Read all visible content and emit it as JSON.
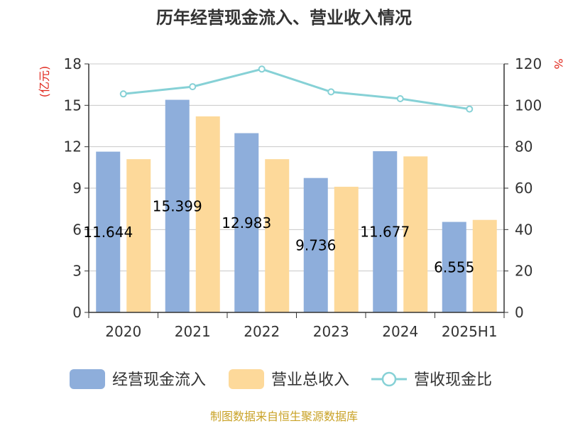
{
  "chart_data": {
    "type": "bar",
    "title": "历年经营现金流入、营业收入情况",
    "categories": [
      "2020",
      "2021",
      "2022",
      "2023",
      "2024",
      "2025H1"
    ],
    "y_left": {
      "unit": "(亿元)",
      "min": 0,
      "max": 18,
      "ticks": [
        0,
        3,
        6,
        9,
        12,
        15,
        18
      ]
    },
    "y_right": {
      "unit": "%",
      "min": 0,
      "max": 120,
      "ticks": [
        0,
        20,
        40,
        60,
        80,
        100,
        120
      ]
    },
    "grid": true,
    "legend_position": "bottom",
    "series": [
      {
        "name": "经营现金流入",
        "type": "bar",
        "axis": "left",
        "color": "#8eaedb",
        "values": [
          11.644,
          15.399,
          12.983,
          9.736,
          11.677,
          6.555
        ],
        "labels": [
          "11.644",
          "15.399",
          "12.983",
          "9.736",
          "11.677",
          "6.555"
        ]
      },
      {
        "name": "营业总收入",
        "type": "bar",
        "axis": "left",
        "color": "#fdd99a",
        "values": [
          11.1,
          14.2,
          11.1,
          9.1,
          11.3,
          6.7
        ]
      },
      {
        "name": "营收现金比",
        "type": "line",
        "axis": "right",
        "color": "#86d1d6",
        "values": [
          105.5,
          109,
          117.5,
          106.5,
          103.2,
          98.2
        ]
      }
    ]
  },
  "source": "制图数据来自恒生聚源数据库"
}
